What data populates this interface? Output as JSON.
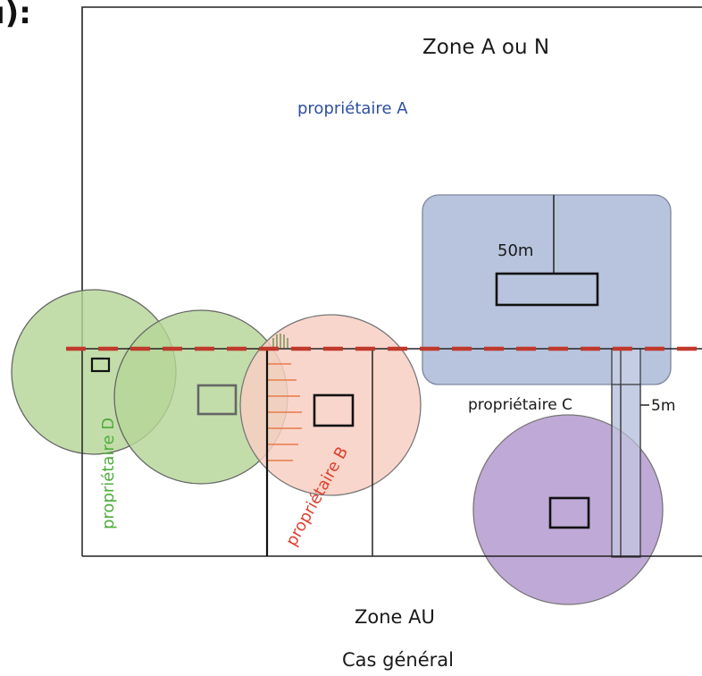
{
  "cropped_text": "ı):",
  "labels": {
    "zone_top": "Zone A ou N",
    "owner_a": "propriétaire A",
    "dist_50": "50m",
    "owner_c": "propriétaire C",
    "dist_5": "5m",
    "owner_d": "propriétaire D",
    "owner_b": "propriétaire B",
    "zone_bottom": "Zone AU",
    "caption": "Cas général"
  },
  "colors": {
    "owner_a": "#2e4fa3",
    "owner_d": "#4fae3c",
    "owner_b": "#e0402e",
    "text": "#1a1a1a",
    "buffer_blue": "#b8c4de",
    "circle_green": "#b6d597",
    "circle_salmon": "#f8cfc3",
    "circle_purple": "#bfa9d6",
    "zone_boundary": "#c0392b"
  }
}
